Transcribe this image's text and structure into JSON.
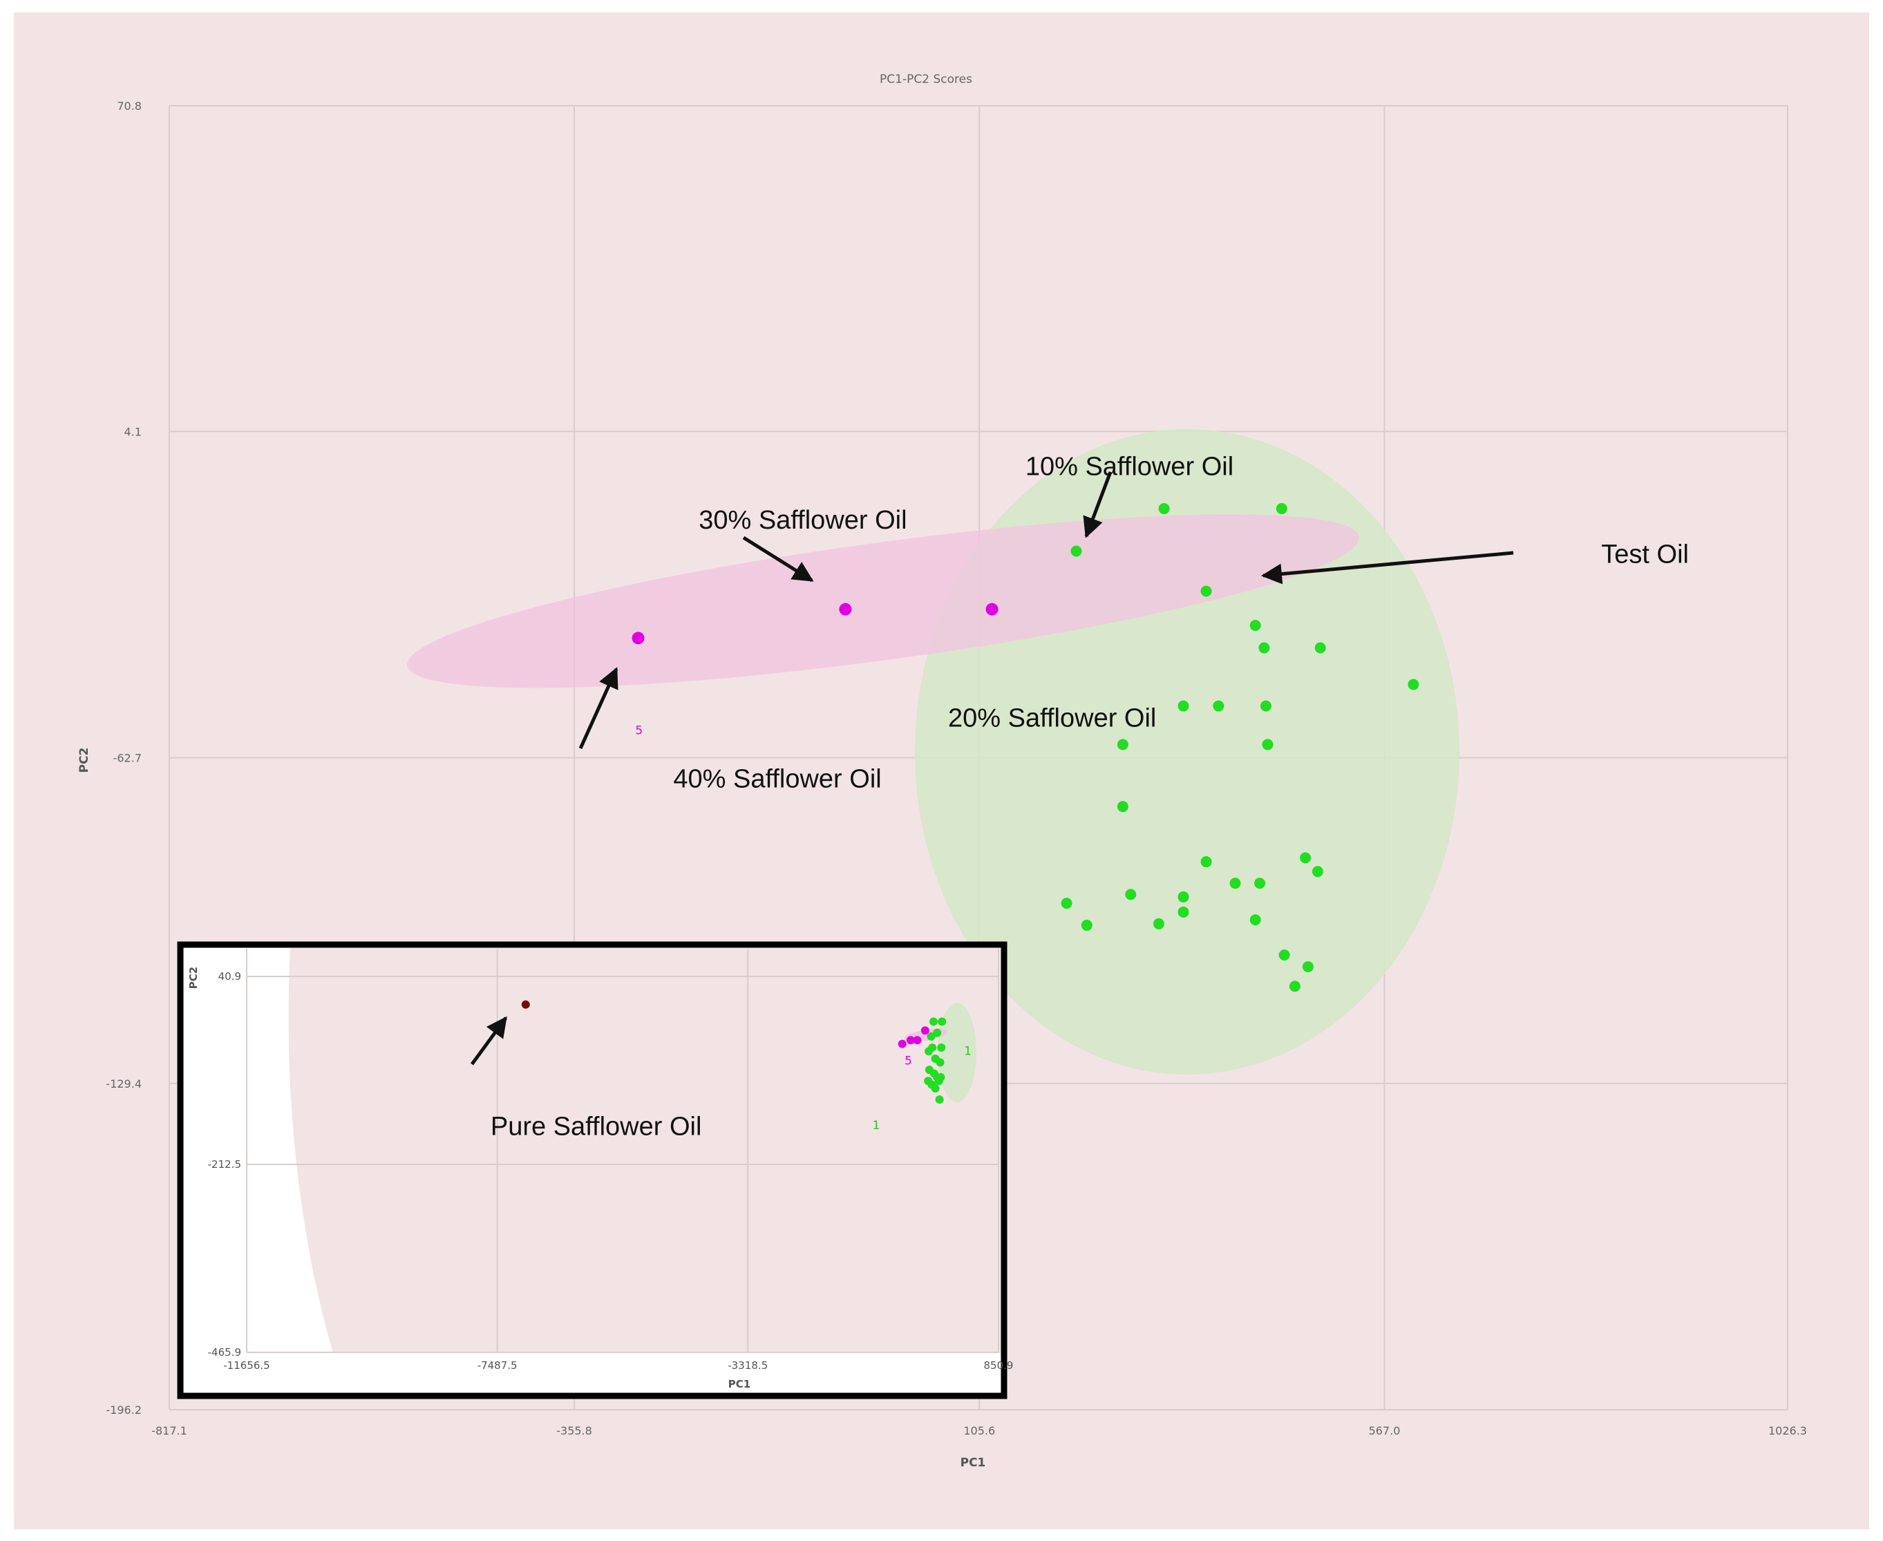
{
  "chart_data": [
    {
      "type": "scatter",
      "title": "PC1-PC2 Scores",
      "xlabel": "PC1",
      "ylabel": "PC2",
      "xlim": [
        -817.1,
        1026.3
      ],
      "ylim": [
        -196.2,
        70.8
      ],
      "x_ticks": [
        "-817.1",
        "-355.8",
        "105.6",
        "567.0",
        "1026.3"
      ],
      "y_ticks": [
        "70.8",
        "4.1",
        "-62.7",
        "-129.4",
        "-196.2"
      ],
      "grid": true,
      "colors": {
        "background": "#f2e4e4",
        "grid": "#d8cccc",
        "test": "#22dd22",
        "blend": "#e000e0",
        "test_ellipse": "#d6e7c9",
        "blend_ellipse": "#f1c8e3"
      },
      "series": [
        {
          "values": [
            [
              -283,
              -38.2
            ],
            [
              -47,
              -32.3
            ],
            [
              120,
              -32.3
            ]
          ]
        },
        {
          "values": [
            [
              216,
              -20.4
            ],
            [
              316,
              -11.7
            ],
            [
              450,
              -11.7
            ],
            [
              364,
              -28.6
            ],
            [
              420,
              -35.6
            ],
            [
              430,
              -40.2
            ],
            [
              494,
              -40.2
            ],
            [
              338,
              -52.1
            ],
            [
              378,
              -52.1
            ],
            [
              432,
              -52.1
            ],
            [
              600,
              -47.7
            ],
            [
              434,
              -60.0
            ],
            [
              269,
              -60.0
            ],
            [
              269,
              -72.7
            ],
            [
              364,
              -84.0
            ],
            [
              477,
              -83.2
            ],
            [
              491,
              -86.0
            ],
            [
              425,
              -88.4
            ],
            [
              278,
              -90.7
            ],
            [
              338,
              -91.2
            ],
            [
              338,
              -94.3
            ],
            [
              420,
              -95.9
            ],
            [
              205,
              -92.5
            ],
            [
              228,
              -97.0
            ],
            [
              310,
              -96.7
            ],
            [
              453,
              -103.1
            ],
            [
              480,
              -105.5
            ],
            [
              465,
              -109.5
            ],
            [
              397,
              -88.4
            ]
          ]
        }
      ],
      "point_labels": [
        {
          "text": "5",
          "x": -282,
          "y": -57.9,
          "color": "#e000e0"
        }
      ],
      "annotations": [
        {
          "text": "10% Safflower Oil",
          "x": 158,
          "y": -4.8
        },
        {
          "text": "30% Safflower Oil",
          "x": -214,
          "y": -15.8
        },
        {
          "text": "Test Oil",
          "x": 814,
          "y": -22.8
        },
        {
          "text": "20% Safflower Oil",
          "x": 70,
          "y": -56.3
        },
        {
          "text": "40% Safflower Oil",
          "x": -243,
          "y": -68.8
        }
      ]
    },
    {
      "type": "scatter",
      "xlabel": "PC1",
      "ylabel": "PC2",
      "xlim": [
        -11656.5,
        850.9
      ],
      "ylim": [
        -465.9,
        40.9
      ],
      "x_ticks": [
        "-11656.5",
        "-7487.5",
        "-3318.5",
        "850.9"
      ],
      "y_ticks": [
        "40.9",
        "-212.5",
        "-465.9"
      ],
      "series": [
        {
          "values": [
            [
              -7015,
              3.0
            ]
          ]
        },
        {
          "values": [
            [
              -750,
              -50
            ],
            [
              -610,
              -45
            ],
            [
              -500,
              -45
            ],
            [
              -370,
              -32
            ]
          ]
        },
        {
          "values": [
            [
              -230,
              -20
            ],
            [
              -90,
              -20
            ],
            [
              -270,
              -40
            ],
            [
              -170,
              -35
            ],
            [
              -250,
              -55
            ],
            [
              -100,
              -55
            ],
            [
              -310,
              -60
            ],
            [
              -200,
              -70
            ],
            [
              -120,
              -75
            ],
            [
              -300,
              -85
            ],
            [
              -220,
              -90
            ],
            [
              -170,
              -95
            ],
            [
              -110,
              -95
            ],
            [
              -320,
              -100
            ],
            [
              -260,
              -105
            ],
            [
              -140,
              -100
            ],
            [
              -200,
              -110
            ],
            [
              -130,
              -125
            ]
          ]
        }
      ],
      "point_labels": [
        {
          "text": "5",
          "x": -650,
          "y": -78,
          "color": "#e000e0"
        },
        {
          "text": "1",
          "x": 340,
          "y": -65,
          "color": "#22cc22"
        },
        {
          "text": "1",
          "x": -1185,
          "y": -165,
          "color": "#22cc22"
        }
      ],
      "annotations": [
        {
          "text": "Pure Safflower Oil",
          "x": -7600,
          "y": -173
        }
      ]
    }
  ]
}
